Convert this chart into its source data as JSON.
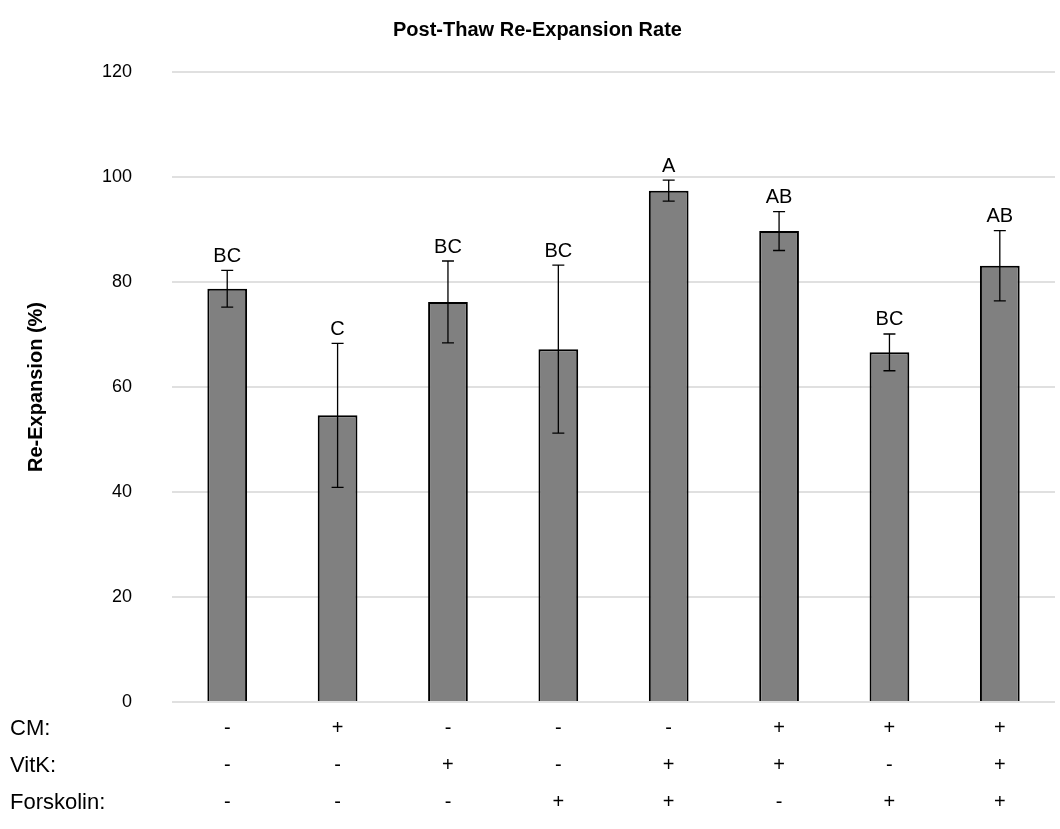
{
  "chart_data": {
    "type": "bar",
    "title": "Post-Thaw Re-Expansion Rate",
    "ylabel": "Re-Expansion (%)",
    "categories": [
      "-\n-\n-",
      "+\n-\n-",
      "-\n+\n-",
      "-\n-\n+",
      "-\n+\n+",
      "+\n+\n-",
      "+\n-\n+",
      "+\n+\n+"
    ],
    "values": [
      78.7,
      54.6,
      76.2,
      67.2,
      97.4,
      89.7,
      66.6,
      83.1
    ],
    "errors": [
      3.5,
      13.7,
      7.8,
      16,
      2,
      3.7,
      3.5,
      6.7
    ],
    "color": "#808080",
    "ylim": [
      0,
      120
    ],
    "yticks": [
      0,
      20,
      40,
      60,
      80,
      100,
      120
    ],
    "grid": "y",
    "legend": false,
    "annotations": [
      "CM:",
      "VitK:",
      "Forskolin:",
      {
        "text": "BC",
        "x": "-\n-\n-",
        "y": 82.2
      },
      {
        "text": "C",
        "x": "+\n-\n-",
        "y": 68.3
      },
      {
        "text": "BC",
        "x": "-\n+\n-",
        "y": 84
      },
      {
        "text": "BC",
        "x": "-\n-\n+",
        "y": 83.2
      },
      {
        "text": "A",
        "x": "-\n+\n+",
        "y": 99.4
      },
      {
        "text": "AB",
        "x": "+\n+\n-",
        "y": 93.4
      },
      {
        "text": "BC",
        "x": "+\n-\n+",
        "y": 70.1
      },
      {
        "text": "AB",
        "x": "+\n+\n+",
        "y": 89.8
      }
    ]
  }
}
